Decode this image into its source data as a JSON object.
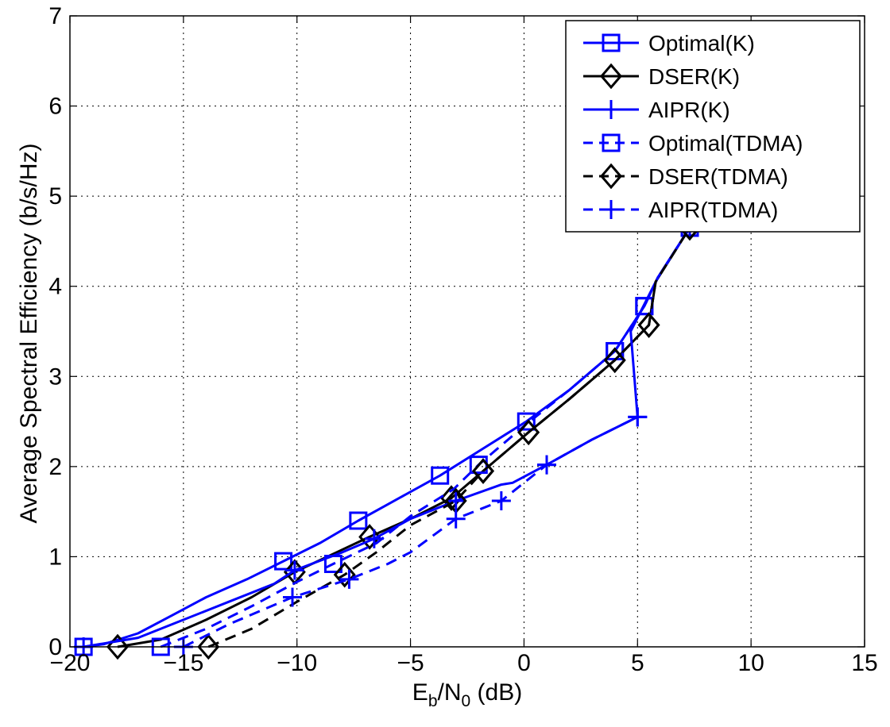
{
  "chart_data": {
    "type": "line",
    "title": "",
    "xlabel": "E_b/N_0 (dB)",
    "xlabel_parts": {
      "E": "E",
      "b": "b",
      "slash": "/N",
      "zero": "0",
      "unit": " (dB)"
    },
    "ylabel": "Average Spectral Efficiency (b/s/Hz)",
    "xlim": [
      -20,
      15
    ],
    "ylim": [
      0,
      7
    ],
    "xticks": [
      -20,
      -15,
      -10,
      -5,
      0,
      5,
      10,
      15
    ],
    "xtick_labels": [
      "−20",
      "−15",
      "−10",
      "−5",
      "0",
      "5",
      "10",
      "15"
    ],
    "yticks": [
      0,
      1,
      2,
      3,
      4,
      5,
      6,
      7
    ],
    "ytick_labels": [
      "0",
      "1",
      "2",
      "3",
      "4",
      "5",
      "6",
      "7"
    ],
    "grid": true,
    "legend_position": "top-right",
    "series": [
      {
        "name": "Optimal(K)",
        "color": "#0000ff",
        "dash": "solid",
        "marker": "square",
        "x": [
          -19.4,
          -18.5,
          -17,
          -15.5,
          -14,
          -12.2,
          -10.6,
          -9,
          -7.3,
          -5.5,
          -3.7,
          -1.8,
          0.1,
          2,
          4,
          5.3,
          5.9,
          7.3
        ],
        "y": [
          0,
          0.03,
          0.15,
          0.35,
          0.55,
          0.75,
          0.95,
          1.15,
          1.4,
          1.65,
          1.9,
          2.2,
          2.5,
          2.85,
          3.28,
          3.78,
          4.1,
          4.65
        ],
        "marker_x": [
          -19.4,
          -10.6,
          -7.3,
          -3.7,
          0.1,
          4,
          5.3,
          7.3
        ],
        "marker_y": [
          0,
          0.95,
          1.4,
          1.9,
          2.5,
          3.28,
          3.78,
          4.65
        ]
      },
      {
        "name": "DSER(K)",
        "color": "#000000",
        "dash": "solid",
        "marker": "diamond",
        "x": [
          -17.9,
          -16,
          -14,
          -12,
          -10.1,
          -8.5,
          -6.8,
          -5,
          -3.2,
          -1.8,
          0.2,
          2,
          4,
          5.5,
          5.8,
          7.3
        ],
        "y": [
          0,
          0.08,
          0.3,
          0.55,
          0.83,
          1.02,
          1.22,
          1.42,
          1.65,
          1.95,
          2.38,
          2.75,
          3.18,
          3.57,
          4.05,
          4.65
        ],
        "marker_x": [
          -17.9,
          -10.1,
          -6.8,
          -3.2,
          -1.8,
          0.2,
          4,
          5.5,
          7.3
        ],
        "marker_y": [
          0,
          0.83,
          1.22,
          1.65,
          1.95,
          2.38,
          3.18,
          3.57,
          4.65
        ]
      },
      {
        "name": "AIPR(K)",
        "color": "#0000ff",
        "dash": "solid",
        "marker": "plus",
        "x": [
          -19.4,
          -17,
          -15,
          -13,
          -11,
          -10.1,
          -8,
          -6.6,
          -5,
          -3,
          -1,
          -0.5,
          1,
          3,
          5,
          4.7,
          5.2,
          5.9,
          7.3
        ],
        "y": [
          0,
          0.1,
          0.3,
          0.5,
          0.7,
          0.85,
          1.05,
          1.2,
          1.42,
          1.62,
          1.8,
          1.82,
          2.02,
          2.3,
          2.55,
          3.5,
          3.75,
          4.1,
          4.65
        ],
        "marker_x": [
          -19.4,
          -10.1,
          -6.6,
          -3,
          1,
          5,
          7.3
        ],
        "marker_y": [
          0,
          0.85,
          1.2,
          1.62,
          2.02,
          2.55,
          4.65
        ]
      },
      {
        "name": "Optimal(TDMA)",
        "color": "#0000ff",
        "dash": "dashed",
        "marker": "square",
        "x": [
          -16,
          -14,
          -12,
          -10,
          -8.4,
          -6.5,
          -5,
          -3.1,
          -2,
          0,
          2,
          4,
          5.3,
          5.9,
          7.3
        ],
        "y": [
          0,
          0.2,
          0.45,
          0.72,
          0.92,
          1.15,
          1.45,
          1.75,
          2.02,
          2.45,
          2.85,
          3.28,
          3.78,
          4.1,
          4.65
        ],
        "marker_x": [
          -16,
          -8.4,
          -2,
          4,
          5.3,
          7.3
        ],
        "marker_y": [
          0,
          0.92,
          2.02,
          3.28,
          3.78,
          4.65
        ]
      },
      {
        "name": "DSER(TDMA)",
        "color": "#000000",
        "dash": "dashed",
        "marker": "diamond",
        "x": [
          -13.9,
          -12,
          -10,
          -7.9,
          -6.5,
          -5,
          -3,
          -1.8,
          0.2,
          2,
          4,
          5.5,
          5.8,
          7.3
        ],
        "y": [
          0,
          0.2,
          0.5,
          0.8,
          1.05,
          1.35,
          1.62,
          1.95,
          2.38,
          2.75,
          3.18,
          3.57,
          4.05,
          4.65
        ],
        "marker_x": [
          -13.9,
          -7.9,
          -3,
          -1.8,
          0.2,
          4,
          5.5,
          7.3
        ],
        "marker_y": [
          0,
          0.8,
          1.62,
          1.95,
          2.38,
          3.18,
          3.57,
          4.65
        ]
      },
      {
        "name": "AIPR(TDMA)",
        "color": "#0000ff",
        "dash": "dashed",
        "marker": "plus",
        "x": [
          -15,
          -13,
          -10.2,
          -7.7,
          -6,
          -5,
          -3,
          -1,
          1,
          3,
          5
        ],
        "y": [
          0,
          0.25,
          0.55,
          0.75,
          0.92,
          1.05,
          1.42,
          1.62,
          2.02,
          2.3,
          2.55
        ],
        "marker_x": [
          -15,
          -10.2,
          -7.7,
          -3,
          -1,
          1,
          5
        ],
        "marker_y": [
          0,
          0.55,
          0.75,
          1.42,
          1.62,
          2.02,
          2.55
        ]
      }
    ]
  }
}
